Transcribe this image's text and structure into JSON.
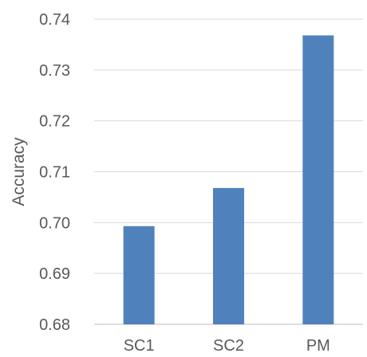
{
  "chart_data": {
    "type": "bar",
    "categories": [
      "SC1",
      "SC2",
      "PM"
    ],
    "series": [
      {
        "values": [
          0.6993,
          0.7068,
          0.7368
        ]
      }
    ],
    "title": "",
    "xlabel": "",
    "ylabel": "Accuracy",
    "ylim": [
      0.68,
      0.74
    ],
    "yticks": [
      "0.68",
      "0.69",
      "0.70",
      "0.71",
      "0.72",
      "0.73",
      "0.74"
    ],
    "grid": true,
    "legend": "none",
    "bar_color": "#4f81bd"
  }
}
